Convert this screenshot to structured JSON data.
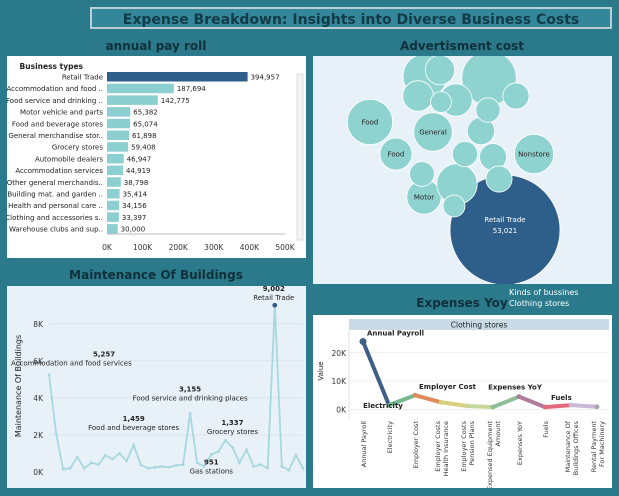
{
  "page": {
    "title": "Expense Breakdown: Insights into Diverse Business Costs"
  },
  "payroll": {
    "title": "annual pay roll",
    "column_header": "Business types",
    "bar_color": "#8ccfd0",
    "highlight_color": "#2d5f8a",
    "x_ticks": [
      "0K",
      "100K",
      "200K",
      "300K",
      "400K",
      "500K"
    ],
    "x_max": 500000,
    "chart_data": {
      "type": "bar",
      "orientation": "horizontal",
      "categories": [
        "Retail Trade",
        "Accommodation and food ..",
        "Food service and drinking ..",
        "Motor vehicle and parts",
        "Food and beverage stores",
        "General merchandise stor..",
        "Grocery stores",
        "Automobile dealers",
        "Accommodation services",
        "Other general merchandis..",
        "Building mat. and garden ..",
        "Health and personal care ..",
        "Clothing and accessories s..",
        "Warehouse clubs and sup.."
      ],
      "values": [
        394957,
        187694,
        142775,
        65382,
        65074,
        61898,
        59408,
        46947,
        44919,
        38798,
        35414,
        34156,
        33397,
        30000
      ],
      "value_labels": [
        "394,957",
        "187,694",
        "142,775",
        "65,382",
        "65,074",
        "61,898",
        "59,408",
        "46,947",
        "44,919",
        "38,798",
        "35,414",
        "34,156",
        "33,397",
        "30,000"
      ],
      "xlim": [
        0,
        500000
      ]
    }
  },
  "advertisement": {
    "title": "Advertisment cost",
    "legend_title": "Kinds of bussines",
    "legend_item": "Clothing stores",
    "bubble_color": "#8fd3d1",
    "highlight_color": "#2d5f8a",
    "chart_data": {
      "type": "bubble",
      "labels": [
        "Retail Trade",
        "Food",
        "Food",
        "General",
        "Nonstore",
        "Motor",
        "",
        "",
        "",
        "",
        "",
        "",
        "",
        "",
        "",
        "",
        "",
        "",
        "",
        "",
        ""
      ],
      "values": [
        53021,
        9000,
        4500,
        6500,
        6800,
        5200,
        13000,
        8500,
        7200,
        3800,
        4100,
        4600,
        3300,
        3200,
        3000,
        2700,
        2800,
        3000,
        2600,
        1900,
        2100
      ],
      "value_labels": [
        "53,021",
        "",
        "",
        "",
        "",
        "",
        "",
        "",
        "",
        "",
        "",
        "",
        "",
        "",
        "",
        "",
        "",
        "",
        "",
        "",
        ""
      ]
    }
  },
  "maintenance": {
    "title": "Maintenance Of Buildings",
    "ylabel": "Maintenance Of Buildings",
    "line_color": "#a7d8df",
    "y_ticks": [
      "0K",
      "2K",
      "4K",
      "6K",
      "8K"
    ],
    "ylim": [
      0,
      9500
    ],
    "chart_data": {
      "type": "line",
      "values": [
        5257,
        2100,
        150,
        200,
        800,
        200,
        500,
        400,
        900,
        700,
        1000,
        600,
        1459,
        400,
        200,
        250,
        300,
        250,
        350,
        400,
        3155,
        500,
        300,
        951,
        1100,
        1700,
        1337,
        500,
        1200,
        300,
        400,
        200,
        9002,
        300,
        100,
        900,
        200
      ],
      "annotations": [
        {
          "index": 0,
          "value": "5,257",
          "label": "Accommodation and food services"
        },
        {
          "index": 12,
          "value": "1,459",
          "label": "Food and beverage stores"
        },
        {
          "index": 20,
          "value": "3,155",
          "label": "Food service and drinking places"
        },
        {
          "index": 23,
          "value": "951",
          "label": "Gas stations"
        },
        {
          "index": 26,
          "value": "1,337",
          "label": "Grocery stores"
        },
        {
          "index": 32,
          "value": "9,002",
          "label": "Retail Trade"
        }
      ]
    }
  },
  "expenses_yoy": {
    "title": "Expenses Yoy",
    "facet_header": "Clothing stores",
    "ylabel": "Value",
    "y_ticks": [
      "0K",
      "10K",
      "20K"
    ],
    "ylim": [
      -2000,
      27000
    ],
    "chart_data": {
      "type": "line",
      "categories": [
        "Annual Payroll",
        "Electricity",
        "Employer Cost",
        "Employer Costs Health Insurance",
        "Employer Costs Pension Plans",
        "Expensed Equipment Amount",
        "Expenses YoY",
        "Fuels",
        "Maintenance Of Buildings Offices",
        "Rental Payment For Machinery"
      ],
      "x_labels": [
        "Annual Payroll",
        "Electricity",
        "Employer Cost",
        "Employer Costs Health Insurance",
        "Employer Costs Pension Plans",
        "Expensed Equipment Amount",
        "Expenses YoY",
        "Fuels",
        "Maintenance Of Buildings Offices",
        "Rental Payment For Machinery"
      ],
      "values": [
        24000,
        1500,
        5000,
        2500,
        1200,
        800,
        4500,
        800,
        1500,
        900
      ],
      "colors": [
        "#3f5f86",
        "#74b98e",
        "#e08b5a",
        "#d8cf7a",
        "#c9d89a",
        "#8fbf9a",
        "#b07a9c",
        "#e36a7d",
        "#c9b8d8",
        "#a7a7a7"
      ],
      "point_labels": [
        {
          "index": 0,
          "text": "Annual Payroll"
        },
        {
          "index": 1,
          "text": "Electricity"
        },
        {
          "index": 2,
          "text": "Employer Cost"
        },
        {
          "index": 6,
          "text": "Expenses YoY"
        },
        {
          "index": 7,
          "text": "Fuels"
        }
      ]
    }
  }
}
